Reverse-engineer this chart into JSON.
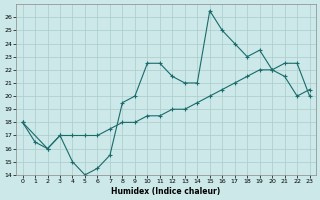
{
  "xlabel": "Humidex (Indice chaleur)",
  "ylabel": "",
  "background_color": "#cce8e8",
  "grid_color": "#aacccc",
  "line_color": "#1a6b6b",
  "ylim": [
    14,
    27
  ],
  "xlim": [
    -0.5,
    23.5
  ],
  "yticks": [
    14,
    15,
    16,
    17,
    18,
    19,
    20,
    21,
    22,
    23,
    24,
    25,
    26
  ],
  "xticks": [
    0,
    1,
    2,
    3,
    4,
    5,
    6,
    7,
    8,
    9,
    10,
    11,
    12,
    13,
    14,
    15,
    16,
    17,
    18,
    19,
    20,
    21,
    22,
    23
  ],
  "line1_x": [
    0,
    1,
    2,
    3,
    4,
    5,
    6,
    7,
    8,
    9,
    10,
    11,
    12,
    13,
    14,
    15,
    16,
    17,
    18,
    19,
    20,
    21,
    22,
    23
  ],
  "line1_y": [
    18,
    16.5,
    16,
    17,
    15,
    14,
    14.5,
    15.5,
    19.5,
    20,
    22.5,
    22.5,
    21.5,
    21,
    21,
    26.5,
    25,
    24,
    23,
    23.5,
    22,
    21.5,
    20,
    20.5
  ],
  "line2_x": [
    0,
    2,
    3,
    4,
    5,
    6,
    7,
    8,
    9,
    10,
    11,
    12,
    13,
    14,
    15,
    16,
    17,
    18,
    19,
    20,
    21,
    22,
    23
  ],
  "line2_y": [
    18,
    16,
    17,
    17,
    17,
    17,
    17.5,
    18,
    18,
    18.5,
    18.5,
    19,
    19,
    19.5,
    20,
    20.5,
    21,
    21.5,
    22,
    22,
    22.5,
    22.5,
    20
  ],
  "marker": "+",
  "markersize": 3,
  "linewidth": 0.8
}
